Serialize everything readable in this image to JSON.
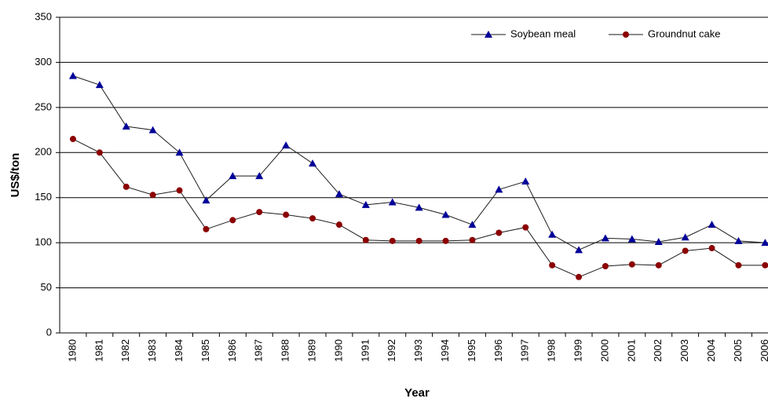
{
  "chart_data": {
    "type": "line",
    "x_label": "Year",
    "y_label": "US$/ton",
    "categories": [
      "1980",
      "1981",
      "1982",
      "1983",
      "1984",
      "1985",
      "1986",
      "1987",
      "1988",
      "1989",
      "1990",
      "1991",
      "1992",
      "1993",
      "1994",
      "1995",
      "1996",
      "1997",
      "1998",
      "1999",
      "2000",
      "2001",
      "2002",
      "2003",
      "2004",
      "2005",
      "2006"
    ],
    "series": [
      {
        "name": "Soybean meal",
        "color": "#000099",
        "marker": "triangle",
        "values": [
          285,
          275,
          229,
          225,
          200,
          147,
          174,
          174,
          208,
          188,
          154,
          142,
          145,
          139,
          131,
          120,
          159,
          168,
          109,
          92,
          105,
          104,
          101,
          106,
          120,
          102,
          100
        ]
      },
      {
        "name": "Groundnut cake",
        "color": "#8b0000",
        "marker": "circle",
        "values": [
          215,
          200,
          162,
          153,
          158,
          115,
          125,
          134,
          131,
          127,
          120,
          103,
          102,
          102,
          102,
          103,
          111,
          117,
          75,
          62,
          74,
          76,
          75,
          91,
          94,
          75,
          75
        ]
      }
    ],
    "line_color": "#1a1a1a",
    "ylim": [
      0,
      350
    ],
    "yticks": [
      0,
      50,
      100,
      150,
      200,
      250,
      300,
      350
    ],
    "grid": true,
    "legend": "top-right"
  }
}
